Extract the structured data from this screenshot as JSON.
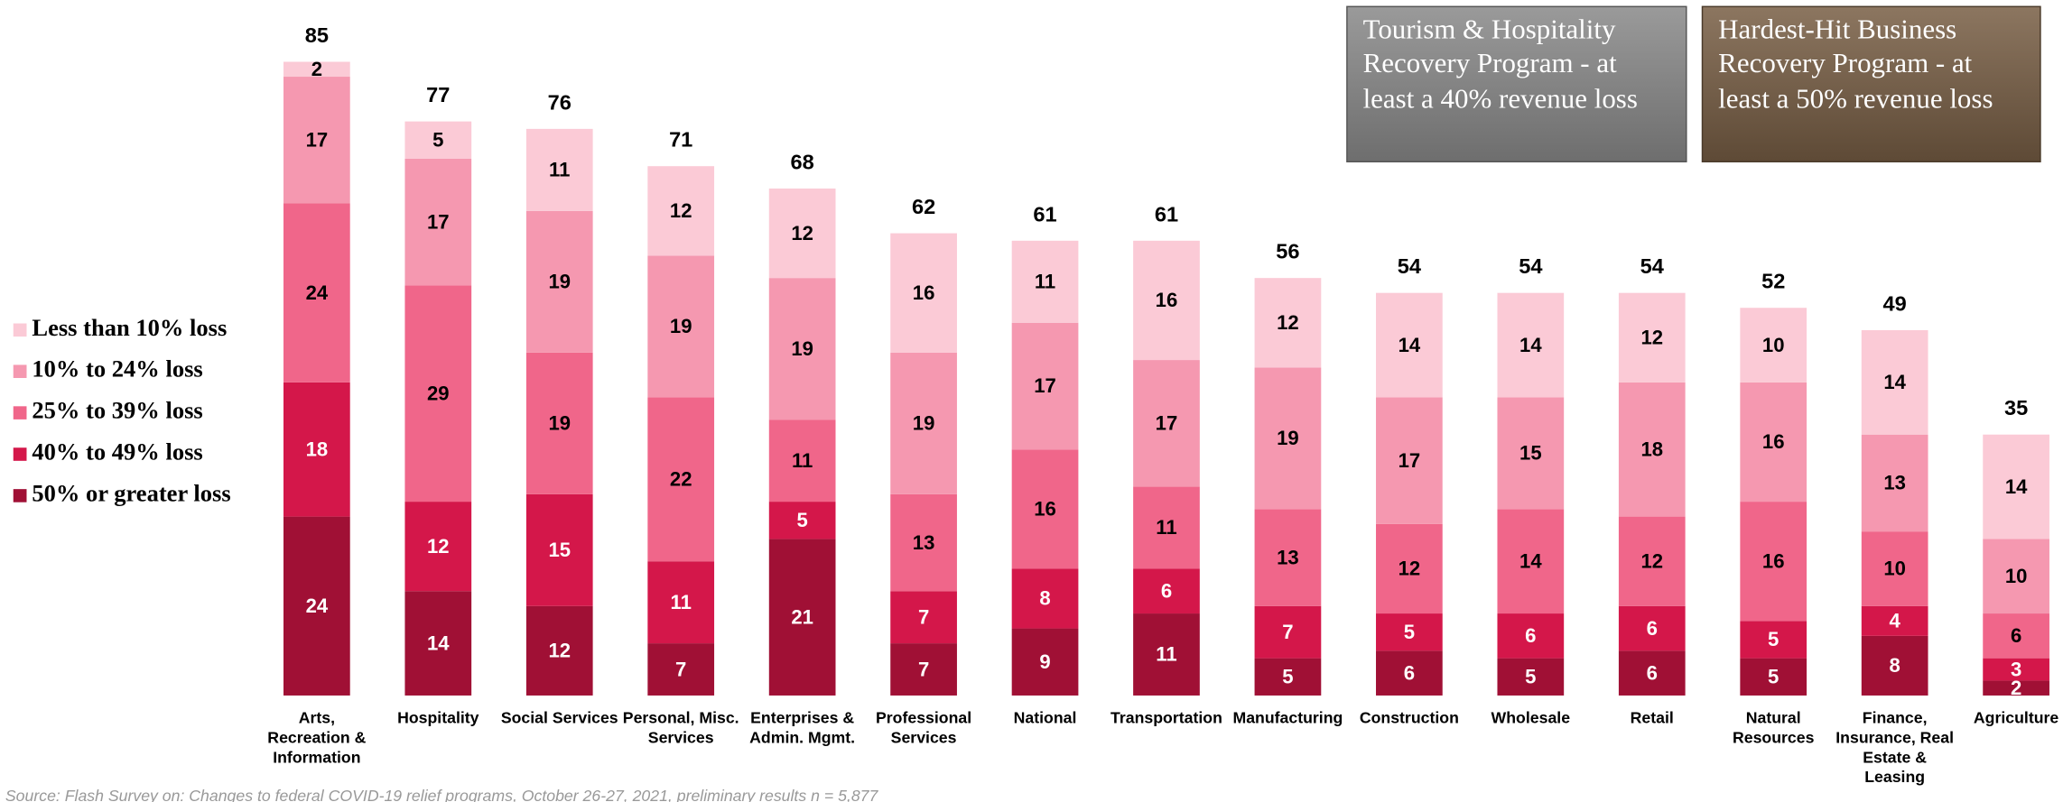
{
  "chart_data": {
    "type": "stacked-bar",
    "categories": [
      "Arts, Recreation & Information",
      "Hospitality",
      "Social Services",
      "Personal, Misc. Services",
      "Enterprises & Admin. Mgmt.",
      "Professional Services",
      "National",
      "Transportation",
      "Manufacturing",
      "Construction",
      "Wholesale",
      "Retail",
      "Natural Resources",
      "Finance, Insurance, Real Estate & Leasing",
      "Agriculture"
    ],
    "series": [
      {
        "name": "50% or greater loss",
        "color": "#a01035",
        "values": [
          24,
          14,
          12,
          7,
          21,
          7,
          9,
          11,
          5,
          6,
          5,
          6,
          5,
          8,
          2
        ]
      },
      {
        "name": "40% to 49% loss",
        "color": "#d4174a",
        "values": [
          18,
          12,
          15,
          11,
          5,
          7,
          8,
          6,
          7,
          5,
          6,
          6,
          5,
          4,
          3
        ]
      },
      {
        "name": "25% to 39% loss",
        "color": "#f0668a",
        "values": [
          24,
          29,
          19,
          22,
          11,
          13,
          16,
          11,
          13,
          12,
          14,
          12,
          16,
          10,
          6
        ]
      },
      {
        "name": "10% to 24% loss",
        "color": "#f598b0",
        "values": [
          17,
          17,
          19,
          19,
          19,
          19,
          17,
          17,
          19,
          17,
          15,
          18,
          16,
          13,
          10
        ]
      },
      {
        "name": "Less than 10% loss",
        "color": "#fbcad6",
        "values": [
          2,
          5,
          11,
          12,
          12,
          16,
          11,
          16,
          12,
          14,
          14,
          12,
          10,
          14,
          14
        ]
      }
    ],
    "totals": [
      85,
      77,
      76,
      71,
      68,
      62,
      61,
      61,
      56,
      54,
      54,
      54,
      52,
      49,
      35
    ],
    "ylim": [
      0,
      85
    ],
    "annotations": [
      "Tourism & Hospitality Recovery Program  - at least a 40% revenue loss",
      "Hardest-Hit Business Recovery Program - at least a 50% revenue loss"
    ],
    "source": "Source: Flash Survey on: Changes to federal COVID-19 relief programs, October 26-27, 2021, preliminary results n = 5,877"
  }
}
